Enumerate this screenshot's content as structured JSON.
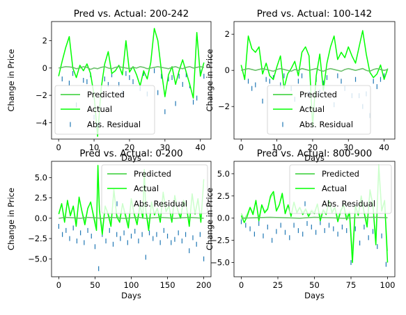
{
  "colors": {
    "predicted": "#32CD32",
    "actual": "#00FF00",
    "actual_light": "#98FB98",
    "residual": "#1f77b4",
    "background": "#ffffff"
  },
  "legend": [
    "Predicted",
    "Actual",
    "Abs. Residual"
  ],
  "chart_data": [
    {
      "type": "line",
      "title": "Pred vs. Actual: 200-242",
      "xlabel": "Days",
      "ylabel": "Change in Price",
      "xlim": [
        -2,
        43
      ],
      "ylim": [
        -5.2,
        3.4
      ],
      "xticks": [
        0,
        10,
        20,
        30,
        40
      ],
      "yticks": [
        -4,
        -2,
        0,
        2
      ],
      "grid": false,
      "legend_position": "lower-left",
      "series": [
        {
          "name": "Predicted",
          "x": [
            0,
            1,
            2,
            3,
            4,
            5,
            6,
            7,
            8,
            9,
            10,
            11,
            12,
            13,
            14,
            15,
            16,
            17,
            18,
            19,
            20,
            21,
            22,
            23,
            24,
            25,
            26,
            27,
            28,
            29,
            30,
            31,
            32,
            33,
            34,
            35,
            36,
            37,
            38,
            39,
            40,
            41
          ],
          "values": [
            0.0,
            0.05,
            0.1,
            0.08,
            0.05,
            -0.05,
            0.0,
            0.1,
            0.05,
            -0.1,
            0.0,
            -0.05,
            0.05,
            0.1,
            0.0,
            -0.05,
            0.05,
            0.1,
            0.05,
            0.0,
            -0.05,
            0.05,
            0.0,
            0.1,
            0.05,
            -0.05,
            0.0,
            0.05,
            0.1,
            0.05,
            0.0,
            -0.05,
            0.05,
            0.1,
            0.0,
            -0.05,
            0.05,
            0.1,
            0.0,
            0.05,
            0.1,
            0.05
          ]
        },
        {
          "name": "Actual",
          "x": [
            0,
            1,
            2,
            3,
            4,
            5,
            6,
            7,
            8,
            9,
            10,
            11,
            12,
            13,
            14,
            15,
            16,
            17,
            18,
            19,
            20,
            21,
            22,
            23,
            24,
            25,
            26,
            27,
            28,
            29,
            30,
            31,
            32,
            33,
            34,
            35,
            36,
            37,
            38,
            39,
            40,
            41
          ],
          "values": [
            -0.6,
            0.5,
            1.5,
            2.3,
            0.0,
            -0.7,
            0.2,
            -0.2,
            0.3,
            -0.4,
            -2.0,
            -5.0,
            -1.5,
            0.3,
            1.2,
            -0.4,
            -0.2,
            0.2,
            -0.5,
            2.0,
            -0.3,
            0.1,
            -0.5,
            -1.3,
            -0.2,
            -0.8,
            0.4,
            2.9,
            2.0,
            -0.2,
            -2.1,
            -0.5,
            0.1,
            -1.2,
            -0.2,
            0.6,
            -0.3,
            -1.2,
            -2.2,
            2.6,
            -0.6,
            0.4
          ]
        },
        {
          "name": "Abs. Residual",
          "x": [
            1,
            3,
            4,
            5,
            7,
            8,
            9,
            10,
            11,
            13,
            14,
            15,
            17,
            18,
            19,
            20,
            21,
            23,
            24,
            25,
            27,
            28,
            29,
            30,
            31,
            32,
            33,
            34,
            35,
            36,
            37,
            38,
            39,
            40,
            41
          ],
          "values": [
            -0.8,
            -1.1,
            -0.4,
            -2.7,
            -0.9,
            -1.0,
            -0.5,
            -3.6,
            -4.2,
            -0.8,
            -1.2,
            -0.5,
            -1.2,
            -1.8,
            -0.4,
            -0.7,
            -1.0,
            -1.5,
            -0.4,
            -1.9,
            -0.2,
            -1.8,
            -0.6,
            -3.2,
            -0.8,
            -0.7,
            -2.6,
            -0.6,
            -1.2,
            -0.5,
            -1.3,
            -2.5,
            -2.2,
            -0.3,
            -0.6
          ]
        }
      ]
    },
    {
      "type": "line",
      "title": "Pred vs. Actual: 100-142",
      "xlabel": "Days",
      "ylabel": "Change in Price",
      "xlim": [
        -2,
        43
      ],
      "ylim": [
        -3.8,
        2.7
      ],
      "xticks": [
        0,
        10,
        20,
        30,
        40
      ],
      "yticks": [
        -2,
        0,
        2
      ],
      "grid": false,
      "legend_position": "lower-center",
      "series": [
        {
          "name": "Predicted",
          "x": [
            0,
            1,
            2,
            3,
            4,
            5,
            6,
            7,
            8,
            9,
            10,
            11,
            12,
            13,
            14,
            15,
            16,
            17,
            18,
            19,
            20,
            21,
            22,
            23,
            24,
            25,
            26,
            27,
            28,
            29,
            30,
            31,
            32,
            33,
            34,
            35,
            36,
            37,
            38,
            39,
            40,
            41
          ],
          "values": [
            0.0,
            0.05,
            0.1,
            0.05,
            0.0,
            0.05,
            0.1,
            0.05,
            0.0,
            -0.05,
            0.05,
            0.1,
            0.05,
            0.0,
            -0.05,
            0.05,
            0.0,
            0.1,
            0.05,
            0.0,
            0.05,
            0.1,
            0.0,
            -0.05,
            0.05,
            0.1,
            0.05,
            0.0,
            -0.05,
            0.05,
            0.1,
            0.05,
            0.0,
            0.05,
            0.1,
            0.0,
            -0.05,
            0.05,
            0.1,
            0.05,
            0.0,
            0.05
          ]
        },
        {
          "name": "Actual",
          "x": [
            0,
            1,
            2,
            3,
            4,
            5,
            6,
            7,
            8,
            9,
            10,
            11,
            12,
            13,
            14,
            15,
            16,
            17,
            18,
            19,
            20,
            21,
            22,
            23,
            24,
            25,
            26,
            27,
            28,
            29,
            30,
            31,
            32,
            33,
            34,
            35,
            36,
            37,
            38,
            39,
            40,
            41
          ],
          "values": [
            0.3,
            -0.5,
            1.9,
            1.2,
            1.0,
            1.3,
            -0.2,
            0.4,
            -0.3,
            -0.5,
            0.2,
            0.8,
            -1.0,
            -0.2,
            0.1,
            0.5,
            -0.3,
            1.0,
            1.3,
            0.8,
            -3.1,
            -0.3,
            0.9,
            -1.1,
            0.4,
            1.3,
            1.9,
            0.6,
            1.0,
            0.7,
            1.3,
            0.8,
            0.4,
            1.3,
            2.2,
            0.9,
            -0.1,
            -0.4,
            -0.2,
            0.3,
            -0.5,
            0.1
          ]
        },
        {
          "name": "Abs. Residual",
          "x": [
            1,
            2,
            3,
            4,
            6,
            7,
            8,
            9,
            11,
            12,
            14,
            15,
            16,
            17,
            19,
            20,
            21,
            22,
            23,
            24,
            26,
            27,
            28,
            29,
            31,
            32,
            33,
            34,
            35,
            36,
            37,
            38,
            39,
            40
          ],
          "values": [
            -0.4,
            -0.6,
            -1.0,
            -0.8,
            -1.7,
            -0.5,
            -0.6,
            -0.4,
            -0.8,
            -0.3,
            -1.0,
            -1.6,
            -0.6,
            -0.3,
            -1.3,
            -2.8,
            -0.5,
            -1.2,
            -0.7,
            -0.4,
            -1.9,
            -0.3,
            -0.6,
            -1.0,
            -1.4,
            -0.5,
            -1.4,
            -2.0,
            -1.3,
            -2.5,
            -0.6,
            -0.9,
            -0.5,
            -0.3
          ]
        }
      ]
    },
    {
      "type": "line",
      "title": "Pred vs. Actual: 0-200",
      "xlabel": "Days",
      "ylabel": "Change in Price",
      "xlim": [
        -10,
        210
      ],
      "ylim": [
        -7.2,
        7.0
      ],
      "xticks": [
        0,
        50,
        100,
        150,
        200
      ],
      "yticks": [
        -5.0,
        -2.5,
        0.0,
        2.5,
        5.0
      ],
      "grid": false,
      "legend_position": "upper-right",
      "series": [
        {
          "name": "Predicted",
          "x": [
            0,
            10,
            20,
            30,
            40,
            50,
            60,
            70,
            80,
            90,
            100,
            110,
            120,
            130,
            140,
            150,
            160,
            170,
            180,
            190,
            200
          ],
          "values": [
            0.0,
            0.1,
            0.05,
            0.0,
            0.1,
            0.05,
            0.0,
            0.1,
            0.05,
            0.0,
            0.05,
            0.1,
            0.0,
            0.05,
            0.1,
            0.05,
            0.0,
            0.05,
            0.1,
            0.05,
            0.0
          ]
        },
        {
          "name": "Actual",
          "x": [
            0,
            4,
            8,
            12,
            16,
            20,
            24,
            28,
            32,
            36,
            40,
            44,
            48,
            52,
            54,
            56,
            60,
            64,
            68,
            72,
            76,
            80,
            84,
            88,
            92,
            96,
            100,
            104,
            108,
            112,
            116,
            118,
            120,
            124,
            128,
            132,
            136,
            140,
            144,
            148,
            152,
            156,
            160,
            164,
            168,
            172,
            176,
            180,
            184,
            188,
            192,
            196,
            200
          ],
          "values": [
            0.5,
            1.8,
            -0.5,
            2.2,
            0.3,
            1.5,
            -1.0,
            2.6,
            0.8,
            -0.8,
            1.2,
            2.0,
            0.2,
            -1.5,
            6.5,
            1.0,
            -2.0,
            1.5,
            0.5,
            -1.0,
            3.5,
            0.2,
            -0.5,
            1.8,
            0.3,
            -1.2,
            2.4,
            0.5,
            -0.8,
            1.6,
            0.0,
            6.0,
            1.0,
            -1.5,
            2.0,
            0.4,
            1.2,
            -0.5,
            3.2,
            0.8,
            1.5,
            -0.5,
            2.8,
            1.0,
            0.0,
            2.2,
            1.5,
            -1.0,
            3.0,
            0.5,
            2.4,
            -0.5,
            4.8
          ]
        },
        {
          "name": "Abs. Residual",
          "x": [
            0,
            5,
            10,
            15,
            20,
            25,
            30,
            35,
            40,
            45,
            50,
            55,
            60,
            65,
            70,
            75,
            80,
            85,
            90,
            95,
            100,
            105,
            110,
            115,
            120,
            125,
            130,
            135,
            140,
            145,
            150,
            155,
            160,
            165,
            170,
            175,
            180,
            185,
            190,
            195,
            200
          ],
          "values": [
            -1.0,
            -2.0,
            -1.5,
            -2.5,
            -1.2,
            -2.8,
            -1.8,
            -3.0,
            -1.5,
            -2.2,
            -3.5,
            -6.2,
            -2.0,
            -2.8,
            -1.5,
            -3.2,
            -2.0,
            -2.5,
            -1.8,
            -3.0,
            -2.2,
            -1.6,
            -2.8,
            -2.0,
            -4.8,
            -1.8,
            -2.5,
            -2.0,
            -3.0,
            -1.5,
            -2.2,
            -3.0,
            -2.6,
            -1.8,
            -2.8,
            -2.0,
            -4.0,
            -2.4,
            -3.2,
            -2.0,
            -5.0
          ]
        }
      ]
    },
    {
      "type": "line",
      "title": "Pred vs. Actual: 800-900",
      "xlabel": "Days",
      "ylabel": "Change in Price",
      "xlim": [
        -5,
        105
      ],
      "ylim": [
        -6.6,
        6.4
      ],
      "xticks": [
        0,
        25,
        50,
        75,
        100
      ],
      "yticks": [
        -5.0,
        -2.5,
        0.0,
        2.5,
        5.0
      ],
      "grid": false,
      "legend_position": "upper-right",
      "series": [
        {
          "name": "Predicted",
          "x": [
            0,
            10,
            20,
            30,
            40,
            50,
            60,
            70,
            80,
            90,
            100
          ],
          "values": [
            0.0,
            0.05,
            0.1,
            0.05,
            0.0,
            0.1,
            0.05,
            0.0,
            0.05,
            0.1,
            0.05
          ]
        },
        {
          "name": "Actual",
          "x": [
            0,
            2,
            4,
            6,
            8,
            10,
            12,
            14,
            16,
            18,
            20,
            22,
            24,
            26,
            28,
            30,
            32,
            34,
            36,
            38,
            40,
            42,
            44,
            46,
            48,
            50,
            52,
            54,
            56,
            58,
            60,
            62,
            64,
            66,
            68,
            70,
            72,
            74,
            76,
            78,
            80,
            82,
            84,
            86,
            88,
            90,
            92,
            94,
            96,
            98,
            100
          ],
          "values": [
            0.3,
            -0.5,
            0.2,
            1.2,
            0.4,
            2.0,
            -0.3,
            1.5,
            0.6,
            1.0,
            2.5,
            3.0,
            0.8,
            1.5,
            2.8,
            0.5,
            1.5,
            0.2,
            1.8,
            0.6,
            1.2,
            0.4,
            1.0,
            0.2,
            0.8,
            0.5,
            1.6,
            -0.3,
            0.9,
            0.4,
            2.0,
            0.6,
            1.2,
            -0.4,
            0.8,
            1.5,
            -0.2,
            0.6,
            -5.0,
            1.4,
            0.3,
            2.5,
            0.6,
            -1.0,
            3.2,
            1.5,
            -3.0,
            6.0,
            0.8,
            2.0,
            -5.0
          ]
        },
        {
          "name": "Abs. Residual",
          "x": [
            0,
            3,
            6,
            9,
            12,
            15,
            18,
            21,
            24,
            27,
            30,
            33,
            36,
            39,
            42,
            45,
            48,
            51,
            54,
            57,
            60,
            63,
            66,
            69,
            72,
            75,
            78,
            81,
            84,
            87,
            90,
            93,
            96,
            99
          ],
          "values": [
            -0.4,
            -0.8,
            -1.2,
            -1.8,
            -0.6,
            -2.0,
            -1.0,
            -2.5,
            -1.5,
            -0.8,
            -1.6,
            -2.2,
            -0.8,
            -1.4,
            -1.8,
            -0.6,
            -1.0,
            -1.6,
            -0.5,
            -1.4,
            -0.8,
            -1.2,
            -1.8,
            -1.0,
            -1.4,
            -5.0,
            -1.2,
            -2.8,
            -1.0,
            -2.2,
            -1.5,
            -3.2,
            -2.0,
            -5.2
          ]
        }
      ]
    }
  ]
}
